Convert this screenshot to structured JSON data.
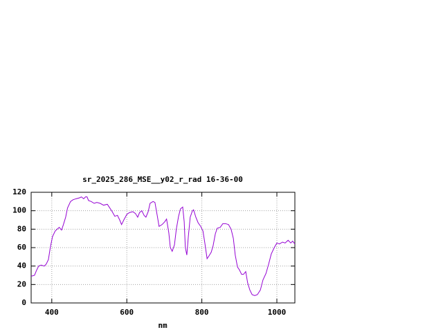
{
  "chart_data": {
    "type": "line",
    "title": "sr_2025_286_MSE__y02_r_rad 16-36-00",
    "xlabel": "nm",
    "x": [
      345,
      354,
      359,
      365,
      372,
      380,
      385,
      391,
      396,
      402,
      409,
      417,
      420,
      426,
      431,
      437,
      442,
      450,
      457,
      465,
      474,
      479,
      485,
      490,
      494,
      498,
      505,
      513,
      520,
      529,
      538,
      548,
      553,
      561,
      568,
      575,
      581,
      586,
      592,
      600,
      607,
      616,
      623,
      629,
      634,
      640,
      646,
      651,
      657,
      662,
      670,
      675,
      681,
      686,
      694,
      701,
      706,
      712,
      716,
      721,
      727,
      732,
      738,
      743,
      749,
      753,
      756,
      760,
      764,
      769,
      775,
      778,
      784,
      790,
      797,
      803,
      808,
      814,
      819,
      825,
      830,
      836,
      841,
      849,
      856,
      863,
      871,
      878,
      884,
      889,
      895,
      900,
      906,
      911,
      917,
      922,
      928,
      934,
      941,
      948,
      956,
      963,
      971,
      978,
      985,
      993,
      1000,
      1007,
      1015,
      1022,
      1030,
      1037,
      1042,
      1048
    ],
    "series": [
      {
        "color": "#9400d3",
        "values": [
          29,
          30,
          35,
          40,
          41,
          40,
          42,
          47,
          60,
          72,
          78,
          81,
          82,
          79,
          85,
          93,
          103,
          110,
          112,
          113,
          114,
          115,
          113,
          115,
          115,
          111,
          110,
          108,
          109,
          108,
          106,
          107,
          104,
          99,
          94,
          95,
          90,
          85,
          90,
          96,
          98,
          99,
          97,
          93,
          98,
          100,
          95,
          93,
          99,
          108,
          110,
          109,
          95,
          83,
          85,
          88,
          91,
          76,
          60,
          56,
          63,
          80,
          94,
          102,
          104,
          88,
          60,
          52,
          72,
          93,
          100,
          101,
          93,
          87,
          83,
          78,
          65,
          48,
          51,
          55,
          62,
          75,
          81,
          82,
          86,
          86,
          85,
          80,
          70,
          52,
          39,
          36,
          31,
          31,
          34,
          22,
          14,
          9,
          8,
          9,
          14,
          25,
          32,
          42,
          53,
          60,
          65,
          64,
          66,
          65,
          68,
          65,
          67,
          64
        ]
      }
    ],
    "xlim": [
      345,
      1048
    ],
    "ylim": [
      0,
      120
    ],
    "xticks": [
      400,
      600,
      800,
      1000
    ],
    "yticks": [
      0,
      20,
      40,
      60,
      80,
      100,
      120
    ],
    "grid": true
  }
}
